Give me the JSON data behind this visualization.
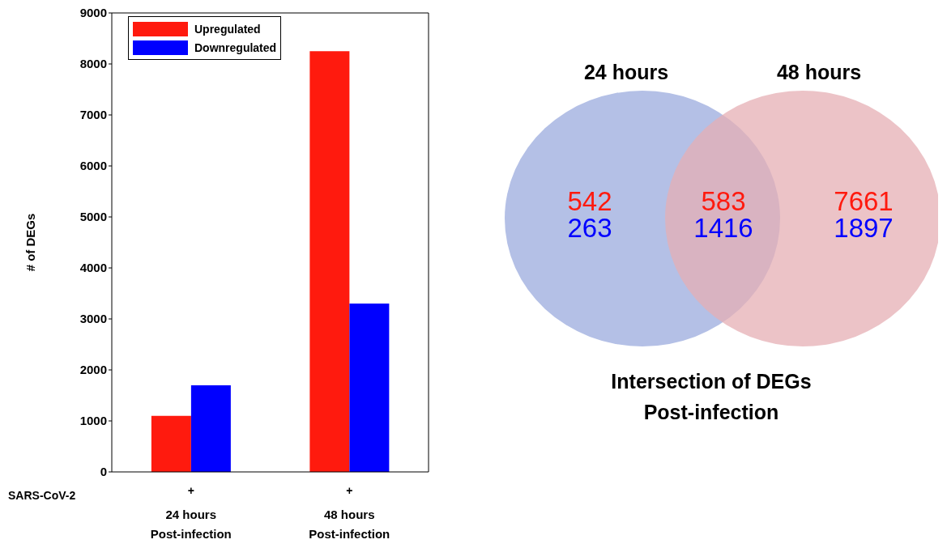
{
  "chart_data": [
    {
      "type": "bar",
      "ylabel": "# of  DEGs",
      "categories": [
        "24 hours\nPost-infection",
        "48 hours\nPost-infection"
      ],
      "series": [
        {
          "name": "Upregulated",
          "color": "#ff1a0e",
          "values": [
            1100,
            8250
          ]
        },
        {
          "name": "Downregulated",
          "color": "#0000ff",
          "values": [
            1700,
            3300
          ]
        }
      ],
      "ylim": [
        0,
        9000
      ],
      "yticks": [
        0,
        1000,
        2000,
        3000,
        4000,
        5000,
        6000,
        7000,
        8000,
        9000
      ],
      "legend": "top left",
      "annotations": [
        "SARS-CoV-2",
        "+",
        "+"
      ]
    },
    {
      "type": "other",
      "title": "Intersection of DEGs\nPost-infection",
      "annotations": [
        "24 hours",
        "48 hours",
        "542",
        "263",
        "583",
        "1416",
        "7661",
        "1897"
      ],
      "colors": [
        "#b4c0e6",
        "#e6afb4"
      ]
    }
  ]
}
